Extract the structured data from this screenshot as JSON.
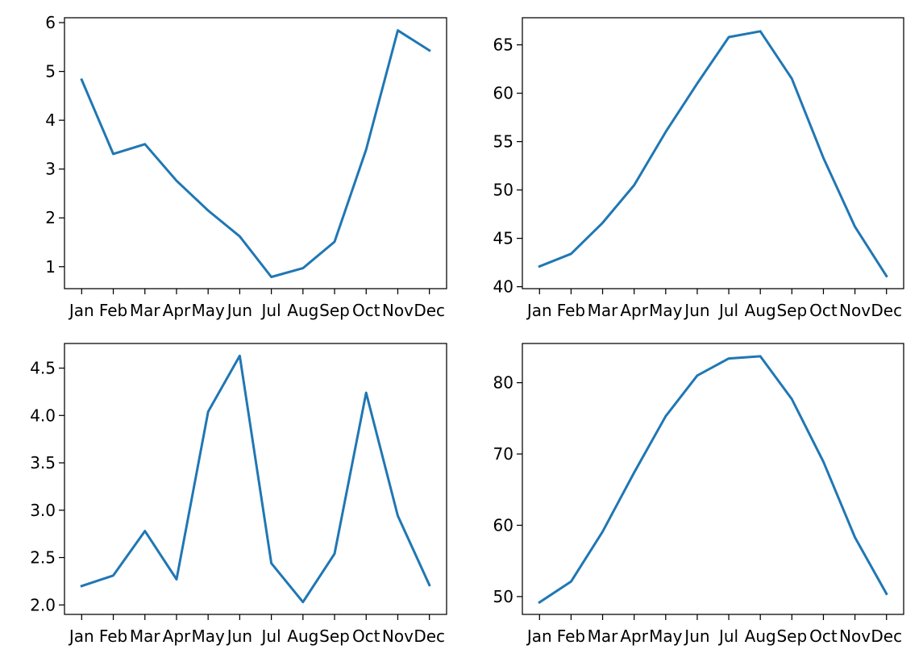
{
  "chart_data": [
    {
      "type": "line",
      "categories": [
        "Jan",
        "Feb",
        "Mar",
        "Apr",
        "May",
        "Jun",
        "Jul",
        "Aug",
        "Sep",
        "Oct",
        "Nov",
        "Dec"
      ],
      "values": [
        4.83,
        3.31,
        3.51,
        2.76,
        2.15,
        1.62,
        0.79,
        0.97,
        1.51,
        3.4,
        5.84,
        5.43
      ],
      "ylim": [
        0.55,
        6.1
      ],
      "yticks": [
        1,
        2,
        3,
        4,
        5,
        6
      ],
      "ytick_labels": [
        "1",
        "2",
        "3",
        "4",
        "5",
        "6"
      ],
      "color": "#1f77b4"
    },
    {
      "type": "line",
      "categories": [
        "Jan",
        "Feb",
        "Mar",
        "Apr",
        "May",
        "Jun",
        "Jul",
        "Aug",
        "Sep",
        "Oct",
        "Nov",
        "Dec"
      ],
      "values": [
        42.1,
        43.4,
        46.6,
        50.5,
        56.0,
        61.0,
        65.8,
        66.4,
        61.5,
        53.3,
        46.2,
        41.1
      ],
      "ylim": [
        39.8,
        67.8
      ],
      "yticks": [
        40,
        45,
        50,
        55,
        60,
        65
      ],
      "ytick_labels": [
        "40",
        "45",
        "50",
        "55",
        "60",
        "65"
      ],
      "color": "#1f77b4"
    },
    {
      "type": "line",
      "categories": [
        "Jan",
        "Feb",
        "Mar",
        "Apr",
        "May",
        "Jun",
        "Jul",
        "Aug",
        "Sep",
        "Oct",
        "Nov",
        "Dec"
      ],
      "values": [
        2.2,
        2.31,
        2.78,
        2.27,
        4.04,
        4.63,
        2.44,
        2.03,
        2.54,
        4.24,
        2.94,
        2.21
      ],
      "ylim": [
        1.9,
        4.76
      ],
      "yticks": [
        2.0,
        2.5,
        3.0,
        3.5,
        4.0,
        4.5
      ],
      "ytick_labels": [
        "2.0",
        "2.5",
        "3.0",
        "3.5",
        "4.0",
        "4.5"
      ],
      "color": "#1f77b4"
    },
    {
      "type": "line",
      "categories": [
        "Jan",
        "Feb",
        "Mar",
        "Apr",
        "May",
        "Jun",
        "Jul",
        "Aug",
        "Sep",
        "Oct",
        "Nov",
        "Dec"
      ],
      "values": [
        49.2,
        52.1,
        59.1,
        67.4,
        75.3,
        81.0,
        83.4,
        83.7,
        77.7,
        68.9,
        58.3,
        50.4
      ],
      "ylim": [
        47.5,
        85.5
      ],
      "yticks": [
        50,
        60,
        70,
        80
      ],
      "ytick_labels": [
        "50",
        "60",
        "70",
        "80"
      ],
      "color": "#1f77b4"
    }
  ]
}
